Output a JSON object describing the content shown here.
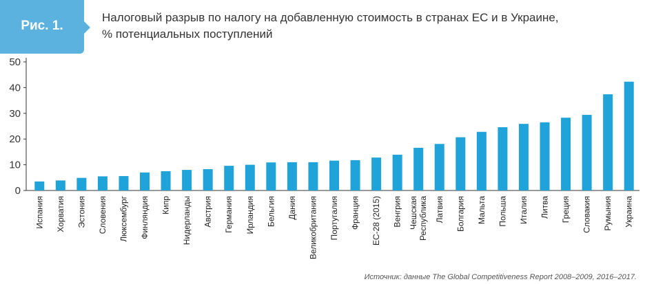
{
  "figure": {
    "label": "Рис. 1.",
    "title_line1": "Налоговый разрыв по налогу на добавленную стоимость в странах ЕС и в Украине,",
    "title_line2": "% потенциальных поступлений",
    "source": "Источник: данные The Global Competitiveness Report 2008–2009, 2016–2017."
  },
  "colors": {
    "bar": "#1fa3d8",
    "badge": "#5bb2df",
    "axis": "#333333",
    "grid": "#cccccc"
  },
  "chart_data": {
    "type": "bar",
    "title": "",
    "xlabel": "",
    "ylabel": "",
    "ylim": [
      0,
      50
    ],
    "yticks": [
      0,
      10,
      20,
      30,
      40,
      50
    ],
    "grid": false,
    "categories": [
      "Испания",
      "Хорватия",
      "Эстония",
      "Словения",
      "Люксембург",
      "Финляндия",
      "Кипр",
      "Нидерланды",
      "Австрия",
      "Германия",
      "Ирландия",
      "Бельгия",
      "Дания",
      "Великобритания",
      "Португалия",
      "Франция",
      "ЕС-28 (2015)",
      "Венгрия",
      "Чешская Республика",
      "Латвия",
      "Болгария",
      "Мальта",
      "Польша",
      "Италия",
      "Литва",
      "Греция",
      "Словакия",
      "Румыния",
      "Украина"
    ],
    "values": [
      3.5,
      3.9,
      4.9,
      5.5,
      5.6,
      7.0,
      7.5,
      8.0,
      8.3,
      9.6,
      10.0,
      10.9,
      11.0,
      11.0,
      11.6,
      11.8,
      12.8,
      13.9,
      16.6,
      18.1,
      20.7,
      22.8,
      24.6,
      25.9,
      26.5,
      28.3,
      29.4,
      37.4,
      42.3
    ]
  }
}
